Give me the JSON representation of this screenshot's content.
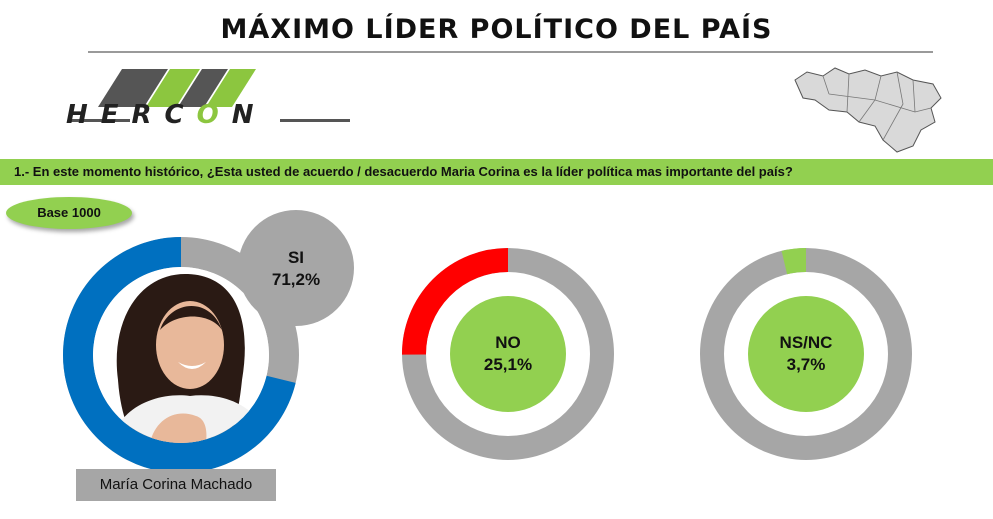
{
  "title": "MÁXIMO LÍDER POLÍTICO DEL PAÍS",
  "logo": {
    "name": "HERCON"
  },
  "question": "1.- En este momento histórico,  ¿Esta usted de acuerdo / desacuerdo Maria Corina es la líder política mas importante del país?",
  "base": "Base 1000",
  "caption": "María Corina Machado",
  "colors": {
    "si": "#0070c0",
    "no": "#ff0000",
    "nsnc": "#92d050",
    "remainder": "#a6a6a6",
    "green": "#92d050"
  },
  "chart_data": [
    {
      "type": "pie",
      "label": "SI",
      "value_text": "71,2%",
      "value": 71.2
    },
    {
      "type": "pie",
      "label": "NO",
      "value_text": "25,1%",
      "value": 25.1
    },
    {
      "type": "pie",
      "label": "NS/NC",
      "value_text": "3,7%",
      "value": 3.7
    }
  ]
}
